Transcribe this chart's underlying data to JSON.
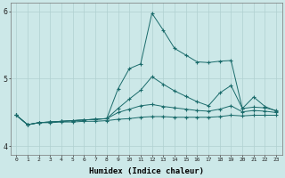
{
  "xlabel": "Humidex (Indice chaleur)",
  "background_color": "#cce8e8",
  "grid_color_major": "#b0d0d0",
  "grid_color_minor": "#b0d0d0",
  "line_color": "#1a6b6b",
  "x_values": [
    0,
    1,
    2,
    3,
    4,
    5,
    6,
    7,
    8,
    9,
    10,
    11,
    12,
    13,
    14,
    15,
    16,
    17,
    18,
    19,
    20,
    21,
    22,
    23
  ],
  "series": [
    [
      4.46,
      4.32,
      4.35,
      4.36,
      4.37,
      4.38,
      4.39,
      4.4,
      4.41,
      4.85,
      5.15,
      5.22,
      5.97,
      5.72,
      5.45,
      5.35,
      5.25,
      5.24,
      5.26,
      5.27,
      4.56,
      4.73,
      4.59,
      4.52
    ],
    [
      4.46,
      4.32,
      4.35,
      4.36,
      4.37,
      4.38,
      4.39,
      4.4,
      4.41,
      4.56,
      4.7,
      4.83,
      5.03,
      4.92,
      4.82,
      4.74,
      4.66,
      4.6,
      4.79,
      4.9,
      4.56,
      4.58,
      4.57,
      4.53
    ],
    [
      4.46,
      4.32,
      4.35,
      4.36,
      4.37,
      4.38,
      4.39,
      4.4,
      4.41,
      4.5,
      4.55,
      4.6,
      4.62,
      4.59,
      4.57,
      4.55,
      4.53,
      4.52,
      4.55,
      4.6,
      4.51,
      4.53,
      4.52,
      4.5
    ],
    [
      4.46,
      4.32,
      4.35,
      4.35,
      4.36,
      4.36,
      4.37,
      4.37,
      4.38,
      4.4,
      4.41,
      4.43,
      4.44,
      4.44,
      4.43,
      4.43,
      4.43,
      4.43,
      4.44,
      4.46,
      4.45,
      4.46,
      4.46,
      4.46
    ]
  ],
  "ylim": [
    3.88,
    6.12
  ],
  "yticks": [
    4,
    5,
    6
  ],
  "xticks": [
    0,
    1,
    2,
    3,
    4,
    5,
    6,
    7,
    8,
    9,
    10,
    11,
    12,
    13,
    14,
    15,
    16,
    17,
    18,
    19,
    20,
    21,
    22,
    23
  ]
}
